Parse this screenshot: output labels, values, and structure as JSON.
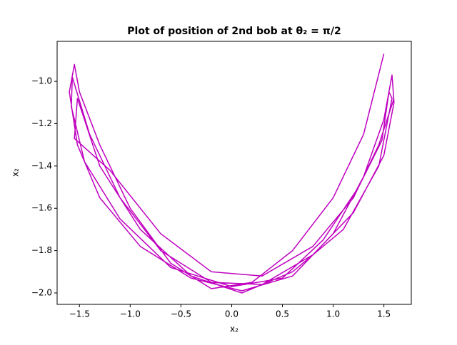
{
  "chart_data": {
    "type": "line",
    "title": "Plot of position of 2nd bob at θ₂ = π/2",
    "x_label": "x₂",
    "y_label": "x₂",
    "xlim": [
      -1.72,
      1.77
    ],
    "ylim": [
      -2.054,
      -0.811
    ],
    "xticks": [
      {
        "value": -1.5,
        "label": "−1.5"
      },
      {
        "value": -1.0,
        "label": "−1.0"
      },
      {
        "value": -0.5,
        "label": "−0.5"
      },
      {
        "value": 0,
        "label": "0.0"
      },
      {
        "value": 0.5,
        "label": "0.5"
      },
      {
        "value": 1.0,
        "label": "1.0"
      },
      {
        "value": 1.5,
        "label": "1.5"
      }
    ],
    "yticks": [
      {
        "value": -2.0,
        "label": "−2.0"
      },
      {
        "value": -1.8,
        "label": "−1.8"
      },
      {
        "value": -1.6,
        "label": "−1.6"
      },
      {
        "value": -1.4,
        "label": "−1.4"
      },
      {
        "value": -1.2,
        "label": "−1.2"
      },
      {
        "value": -1.0,
        "label": "−1.0"
      }
    ],
    "series": [
      {
        "color": "#bf00bf",
        "x": [
          1.5,
          1.3,
          1.0,
          0.6,
          0.2,
          -0.2,
          -0.6,
          -1.0,
          -1.3,
          -1.5,
          -1.55,
          -1.6,
          -1.52,
          -1.3,
          -0.9,
          -0.4,
          0.1,
          0.6,
          1.0,
          1.3,
          1.5,
          1.58,
          1.6,
          1.5,
          1.2,
          0.8,
          0.3,
          -0.2,
          -0.7,
          -1.1,
          -1.4,
          -1.57,
          -1.58,
          -1.45,
          -1.1,
          -0.6,
          0.0,
          0.5,
          0.9,
          1.25,
          1.48,
          1.55,
          1.58,
          1.45,
          1.1,
          0.6,
          0.1,
          -0.4,
          -0.9,
          -1.3,
          -1.52,
          -1.55,
          -1.2,
          -0.7,
          -0.2,
          0.3,
          0.8,
          1.2,
          1.45,
          1.6
        ],
        "values": [
          -0.87,
          -1.25,
          -1.55,
          -1.8,
          -1.95,
          -1.98,
          -1.86,
          -1.6,
          -1.3,
          -1.05,
          -0.92,
          -1.05,
          -1.3,
          -1.55,
          -1.78,
          -1.93,
          -1.99,
          -1.92,
          -1.72,
          -1.45,
          -1.18,
          -0.97,
          -1.1,
          -1.35,
          -1.62,
          -1.82,
          -1.96,
          -1.95,
          -1.8,
          -1.55,
          -1.25,
          -0.98,
          -1.12,
          -1.38,
          -1.65,
          -1.88,
          -1.97,
          -1.93,
          -1.75,
          -1.5,
          -1.28,
          -1.05,
          -1.08,
          -1.4,
          -1.7,
          -1.9,
          -2.0,
          -1.92,
          -1.7,
          -1.4,
          -1.08,
          -1.27,
          -1.42,
          -1.72,
          -1.9,
          -1.92,
          -1.78,
          -1.55,
          -1.3,
          -1.08
        ]
      }
    ]
  }
}
